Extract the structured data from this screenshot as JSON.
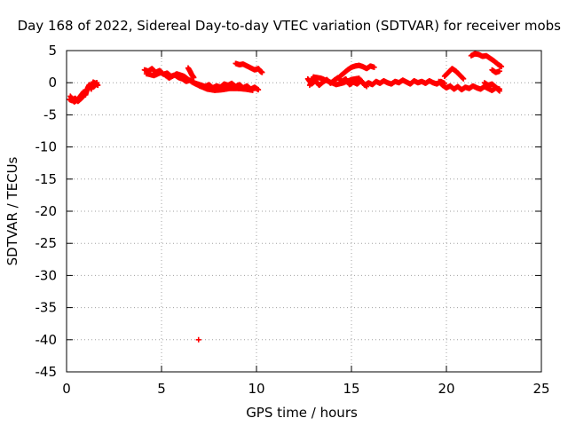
{
  "chart_data": {
    "type": "scatter",
    "title": "Day 168 of 2022, Sidereal Day-to-day VTEC variation (SDTVAR) for receiver mobs",
    "xlabel": "GPS time / hours",
    "ylabel": "SDTVAR / TECUs",
    "xlim": [
      0,
      25
    ],
    "ylim": [
      -45,
      5
    ],
    "x_ticks": [
      0,
      5,
      10,
      15,
      20,
      25
    ],
    "x_tick_labels": [
      "0",
      "5",
      "10",
      "15",
      "20",
      "25"
    ],
    "y_ticks": [
      5,
      0,
      -5,
      -10,
      -15,
      -20,
      -25,
      -30,
      -35,
      -40,
      -45
    ],
    "y_tick_labels": [
      "5",
      "0",
      "-5",
      "-10",
      "-15",
      "-20",
      "-25",
      "-30",
      "-35",
      "-40",
      "-45"
    ],
    "grid": true,
    "marker": "plus",
    "series": [
      {
        "name": "SDTVAR",
        "color": "#ff0000",
        "segments": [
          {
            "x": [
              0.15,
              0.3,
              0.45,
              0.6,
              0.75,
              0.85,
              0.95,
              1.05,
              1.15,
              1.25,
              1.35,
              1.45,
              1.55,
              1.65
            ],
            "y": [
              -2.6,
              -2.8,
              -2.4,
              -2.9,
              -2.5,
              -2.2,
              -1.8,
              -1.2,
              -0.8,
              -0.5,
              -0.3,
              -0.6,
              -0.2,
              -0.4
            ]
          },
          {
            "x": [
              0.2,
              0.4,
              0.55,
              0.7,
              0.9,
              1.0,
              1.1,
              1.2,
              1.3,
              1.4,
              1.5,
              1.6
            ],
            "y": [
              -2.1,
              -3.0,
              -2.7,
              -2.2,
              -1.4,
              -1.9,
              -0.9,
              -0.3,
              -1.0,
              0.1,
              -0.1,
              0.0
            ]
          },
          {
            "x": [
              4.1,
              4.3,
              4.5,
              4.7,
              4.9,
              5.1,
              5.3,
              5.5,
              5.7,
              5.9,
              6.1,
              6.3,
              6.5,
              6.7,
              6.9,
              7.1,
              7.3,
              7.5,
              7.7,
              7.9,
              8.1,
              8.3,
              8.5,
              8.7,
              8.9,
              9.1,
              9.3,
              9.5,
              9.7,
              9.9,
              10.1
            ],
            "y": [
              2.0,
              1.8,
              2.2,
              1.6,
              1.9,
              1.3,
              1.5,
              1.0,
              1.2,
              0.8,
              0.6,
              0.2,
              0.4,
              0.0,
              -0.2,
              -0.4,
              -0.6,
              -0.3,
              -0.8,
              -0.5,
              -0.7,
              -0.2,
              -0.4,
              -0.1,
              -0.6,
              -0.3,
              -0.8,
              -0.5,
              -1.0,
              -0.7,
              -1.1
            ]
          },
          {
            "x": [
              4.2,
              4.6,
              5.0,
              5.4,
              5.8,
              6.2,
              6.6,
              7.0,
              7.4,
              7.8,
              8.2,
              8.6,
              9.0,
              9.4,
              9.8
            ],
            "y": [
              1.4,
              1.1,
              1.6,
              0.7,
              1.4,
              1.0,
              0.1,
              -0.5,
              -1.0,
              -1.2,
              -1.1,
              -0.9,
              -0.9,
              -1.0,
              -1.2
            ]
          },
          {
            "x": [
              6.4,
              6.5,
              6.6,
              6.7
            ],
            "y": [
              2.3,
              1.8,
              1.2,
              0.8
            ]
          },
          {
            "x": [
              8.9,
              9.1,
              9.3,
              9.5,
              9.7,
              9.9,
              10.1,
              10.2,
              10.3
            ],
            "y": [
              3.0,
              2.8,
              2.9,
              2.6,
              2.3,
              2.0,
              2.2,
              1.8,
              1.6
            ]
          },
          {
            "x": [
              6.95
            ],
            "y": [
              -40.0
            ]
          },
          {
            "x": [
              12.7,
              12.9,
              13.1,
              13.3,
              13.5,
              13.7,
              13.9,
              14.1,
              14.3,
              14.5,
              14.7,
              14.9,
              15.1,
              15.3,
              15.5,
              15.7,
              15.9,
              16.1,
              16.3,
              16.5,
              16.7,
              16.9,
              17.1,
              17.3,
              17.5,
              17.7,
              17.9,
              18.1,
              18.3,
              18.5,
              18.7,
              18.9,
              19.1,
              19.3,
              19.5,
              19.7,
              19.9
            ],
            "y": [
              0.6,
              -0.2,
              0.3,
              -0.4,
              0.1,
              0.5,
              -0.1,
              0.4,
              0.8,
              0.2,
              0.6,
              -0.3,
              0.1,
              -0.2,
              0.3,
              -0.4,
              0.0,
              -0.3,
              0.2,
              -0.1,
              0.3,
              0.0,
              -0.2,
              0.2,
              0.0,
              0.4,
              0.1,
              -0.2,
              0.3,
              0.0,
              0.2,
              -0.1,
              0.3,
              0.0,
              -0.2,
              0.2,
              -0.1
            ]
          },
          {
            "x": [
              12.8,
              13.0,
              13.4,
              13.8,
              14.2,
              14.6,
              15.0,
              15.4,
              15.8
            ],
            "y": [
              -0.4,
              0.9,
              0.7,
              0.2,
              -0.3,
              0.0,
              0.5,
              0.7,
              -0.6
            ]
          },
          {
            "x": [
              14.4,
              14.6,
              14.8,
              15.0,
              15.2,
              15.4,
              15.6,
              15.8,
              16.0,
              16.2
            ],
            "y": [
              1.0,
              1.5,
              2.0,
              2.4,
              2.6,
              2.7,
              2.5,
              2.2,
              2.6,
              2.4
            ]
          },
          {
            "x": [
              19.6,
              19.8,
              20.0,
              20.2,
              20.4,
              20.6,
              20.8,
              21.0,
              21.2,
              21.4,
              21.6,
              21.8,
              22.0,
              22.2,
              22.4,
              22.6,
              22.8
            ],
            "y": [
              0.2,
              -0.4,
              -0.8,
              -0.5,
              -1.0,
              -0.6,
              -1.1,
              -0.7,
              -0.9,
              -0.5,
              -0.8,
              -1.0,
              -0.6,
              -0.9,
              -1.2,
              -0.8,
              -1.0
            ]
          },
          {
            "x": [
              19.9,
              20.1,
              20.3,
              20.5,
              20.7,
              20.9
            ],
            "y": [
              1.0,
              1.6,
              2.2,
              1.8,
              1.2,
              0.6
            ]
          },
          {
            "x": [
              21.3,
              21.5,
              21.7,
              21.9,
              22.1,
              22.3,
              22.5,
              22.7,
              22.9
            ],
            "y": [
              4.2,
              4.5,
              4.4,
              4.1,
              4.2,
              3.8,
              3.4,
              2.9,
              2.5
            ]
          },
          {
            "x": [
              22.4,
              22.6,
              22.8
            ],
            "y": [
              2.0,
              1.6,
              1.8
            ]
          },
          {
            "x": [
              22.0,
              22.2,
              22.4,
              22.6,
              22.8
            ],
            "y": [
              0.0,
              -0.4,
              -0.2,
              -0.7,
              -1.3
            ]
          }
        ]
      }
    ]
  }
}
